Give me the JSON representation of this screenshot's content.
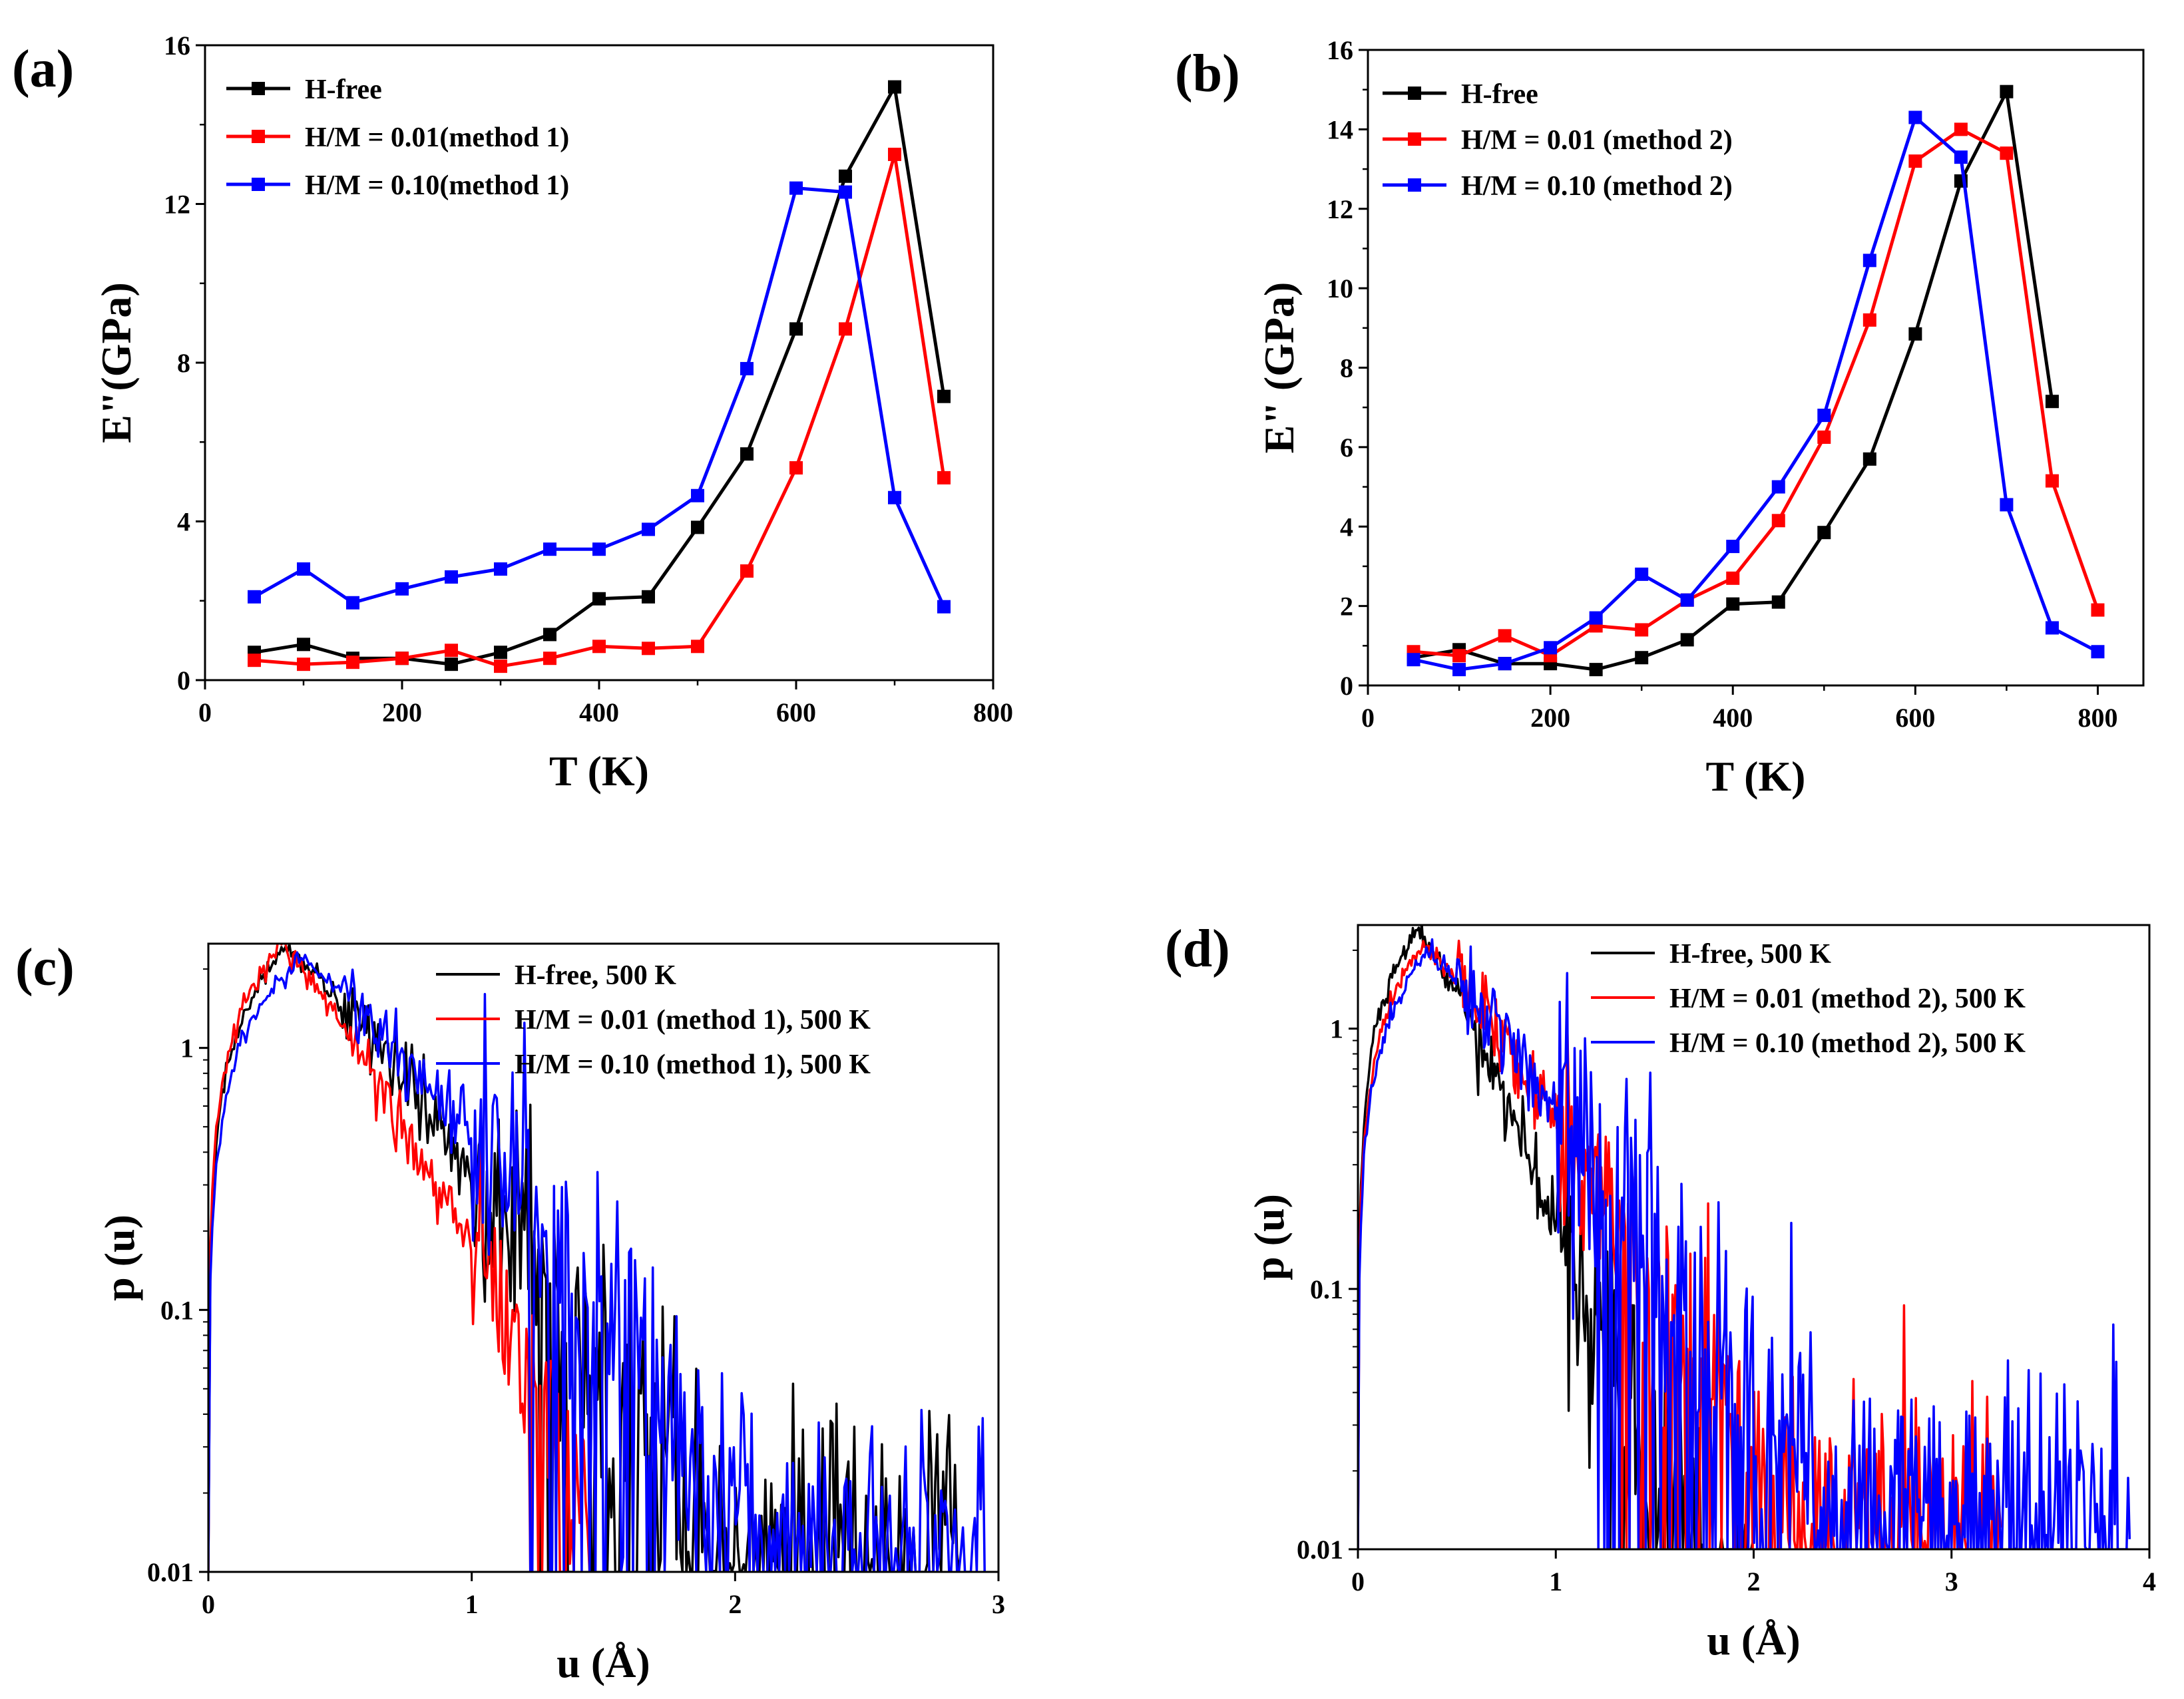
{
  "figure": {
    "panels": [
      "a",
      "b",
      "c",
      "d"
    ]
  },
  "chart_data": [
    {
      "id": "a",
      "type": "line",
      "panel_label": "(a)",
      "xlabel": "T (K)",
      "ylabel": "E\"(GPa)",
      "xlim": [
        0,
        800
      ],
      "ylim": [
        0,
        16
      ],
      "xticks": [
        0,
        200,
        400,
        600,
        800
      ],
      "yticks": [
        0,
        4,
        8,
        12,
        16
      ],
      "yscale": "linear",
      "markers": true,
      "legend_position": "top-left",
      "x": [
        50,
        100,
        150,
        200,
        250,
        300,
        350,
        400,
        450,
        500,
        550,
        600,
        650,
        700,
        750
      ],
      "series": [
        {
          "name": "H-free",
          "color": "#000000",
          "values": [
            0.7,
            0.9,
            0.55,
            0.55,
            0.4,
            0.7,
            1.15,
            2.05,
            2.1,
            3.85,
            5.7,
            8.85,
            12.7,
            14.95,
            7.15
          ]
        },
        {
          "name": "H/M = 0.01(method 1)",
          "color": "#ff0000",
          "values": [
            0.5,
            0.4,
            0.45,
            0.55,
            0.75,
            0.35,
            0.55,
            0.85,
            0.8,
            0.85,
            2.75,
            5.35,
            8.85,
            13.25,
            5.1
          ]
        },
        {
          "name": "H/M = 0.10(method 1)",
          "color": "#0000ff",
          "values": [
            2.1,
            2.8,
            1.95,
            2.3,
            2.6,
            2.8,
            3.3,
            3.3,
            3.8,
            4.65,
            7.85,
            12.4,
            12.3,
            4.6,
            1.85
          ]
        }
      ]
    },
    {
      "id": "b",
      "type": "line",
      "panel_label": "(b)",
      "xlabel": "T (K)",
      "ylabel": "E\" (GPa)",
      "xlim": [
        0,
        850
      ],
      "ylim": [
        0,
        16
      ],
      "xticks": [
        0,
        200,
        400,
        600,
        800
      ],
      "yticks": [
        0,
        2,
        4,
        6,
        8,
        10,
        12,
        14,
        16
      ],
      "yscale": "linear",
      "markers": true,
      "legend_position": "top-left",
      "x": [
        50,
        100,
        150,
        200,
        250,
        300,
        350,
        400,
        450,
        500,
        550,
        600,
        650,
        700,
        750,
        800
      ],
      "series": [
        {
          "name": "H-free",
          "color": "#000000",
          "values": [
            0.7,
            0.9,
            0.55,
            0.55,
            0.4,
            0.7,
            1.15,
            2.05,
            2.1,
            3.85,
            5.7,
            8.85,
            12.7,
            14.95,
            7.15,
            null
          ]
        },
        {
          "name": "H/M = 0.01 (method 2)",
          "color": "#ff0000",
          "values": [
            0.85,
            0.75,
            1.25,
            0.75,
            1.5,
            1.4,
            2.15,
            2.7,
            4.15,
            6.25,
            9.2,
            13.2,
            14.0,
            13.4,
            5.15,
            1.9
          ]
        },
        {
          "name": "H/M = 0.10 (method 2)",
          "color": "#0000ff",
          "values": [
            0.65,
            0.4,
            0.55,
            0.95,
            1.7,
            2.8,
            2.15,
            3.5,
            5.0,
            6.8,
            10.7,
            14.3,
            13.3,
            4.55,
            1.45,
            0.85
          ]
        }
      ]
    },
    {
      "id": "c",
      "type": "line",
      "panel_label": "(c)",
      "xlabel": "u (Å)",
      "ylabel": "p (u)",
      "xlim": [
        0,
        3
      ],
      "ylim": [
        0.01,
        2.5
      ],
      "xticks": [
        0,
        1,
        2,
        3
      ],
      "yticks": [
        0.01,
        0.1,
        1
      ],
      "ytick_labels": [
        "0.01",
        "0.1",
        "1"
      ],
      "yscale": "log",
      "markers": false,
      "legend_position": "top-right",
      "series": [
        {
          "name": "H-free, 500 K",
          "color": "#000000",
          "peak_u": 0.3,
          "peak_p": 2.4,
          "decay": 2.9,
          "tail_floor": 0.013,
          "u_max": 2.85,
          "noise": 0.35
        },
        {
          "name": "H/M = 0.01 (method 1), 500 K",
          "color": "#ff0000",
          "peak_u": 0.28,
          "peak_p": 2.5,
          "decay": 4.0,
          "tail_floor": 0.01,
          "u_max": 1.45,
          "noise": 0.3
        },
        {
          "name": "H/M = 0.10 (method 1), 500 K",
          "color": "#0000ff",
          "peak_u": 0.35,
          "peak_p": 2.2,
          "decay": 2.6,
          "tail_floor": 0.013,
          "u_max": 2.95,
          "noise": 0.35
        }
      ]
    },
    {
      "id": "d",
      "type": "line",
      "panel_label": "(d)",
      "xlabel": "u (Å)",
      "ylabel": "p (u)",
      "xlim": [
        0,
        4
      ],
      "ylim": [
        0.01,
        2.5
      ],
      "xticks": [
        0,
        1,
        2,
        3,
        4
      ],
      "yticks": [
        0.01,
        0.1,
        1
      ],
      "ytick_labels": [
        "0.01",
        "0.1",
        "1"
      ],
      "yscale": "log",
      "markers": false,
      "legend_position": "top-right",
      "series": [
        {
          "name": "H-free, 500 K",
          "color": "#000000",
          "peak_u": 0.3,
          "peak_p": 2.4,
          "decay": 3.9,
          "tail_floor": 0.011,
          "u_max": 2.0,
          "noise": 0.35
        },
        {
          "name": "H/M = 0.01 (method 2), 500 K",
          "color": "#ff0000",
          "peak_u": 0.33,
          "peak_p": 2.1,
          "decay": 2.5,
          "tail_floor": 0.013,
          "u_max": 3.25,
          "noise": 0.35
        },
        {
          "name": "H/M = 0.10 (method 2), 500 K",
          "color": "#0000ff",
          "peak_u": 0.35,
          "peak_p": 1.95,
          "decay": 2.2,
          "tail_floor": 0.014,
          "u_max": 3.9,
          "noise": 0.4
        }
      ]
    }
  ]
}
